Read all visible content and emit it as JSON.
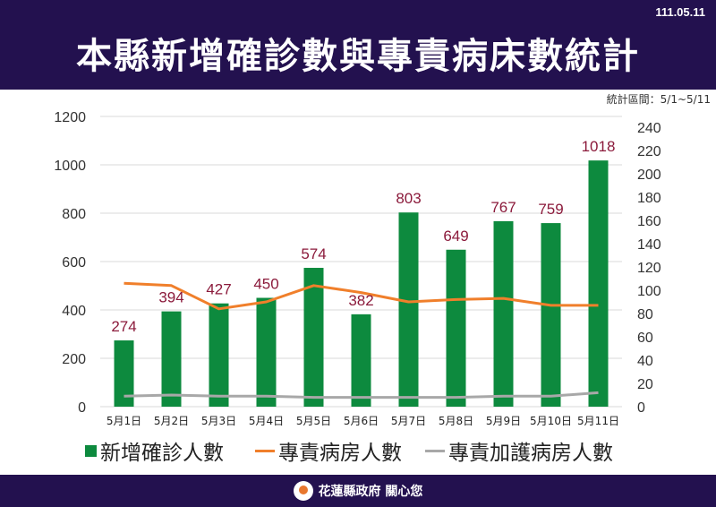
{
  "header": {
    "title": "本縣新增確診數與專責病床數統計",
    "date": "111.05.11"
  },
  "stat_range": "統計區間：5/1~5/11",
  "footer": {
    "text": "花蓮縣政府 關心您"
  },
  "colors": {
    "header_bg": "#23114f",
    "bar": "#0d8a3e",
    "line_ward": "#f07f2b",
    "line_icu": "#a8a8a8",
    "label": "#8b1a3b"
  },
  "chart_data": {
    "type": "bar",
    "categories": [
      "5月1日",
      "5月2日",
      "5月3日",
      "5月4日",
      "5月5日",
      "5月6日",
      "5月7日",
      "5月8日",
      "5月9日",
      "5月10日",
      "5月11日"
    ],
    "series": [
      {
        "name": "新增確診人數",
        "type": "bar",
        "axis": "left",
        "values": [
          274,
          394,
          427,
          450,
          574,
          382,
          803,
          649,
          767,
          759,
          1018
        ]
      },
      {
        "name": "專責病房人數",
        "type": "line",
        "axis": "right",
        "values": [
          106,
          104,
          84,
          90,
          104,
          98,
          90,
          92,
          93,
          87,
          87
        ]
      },
      {
        "name": "專責加護病房人數",
        "type": "line",
        "axis": "right",
        "values": [
          9,
          10,
          9,
          9,
          8,
          8,
          8,
          8,
          9,
          9,
          12
        ]
      }
    ],
    "left_axis": {
      "ylim": [
        0,
        1200
      ],
      "ticks": [
        0,
        200,
        400,
        600,
        800,
        1000,
        1200
      ]
    },
    "right_axis": {
      "ylim": [
        0,
        240
      ],
      "ticks": [
        0,
        20,
        40,
        60,
        80,
        100,
        120,
        140,
        160,
        180,
        200,
        220,
        240
      ]
    },
    "grid": true,
    "legend": "bottom",
    "data_labels": [
      "274",
      "394",
      "427",
      "450",
      "574",
      "382",
      "803",
      "649",
      "767",
      "759",
      "1018"
    ]
  }
}
